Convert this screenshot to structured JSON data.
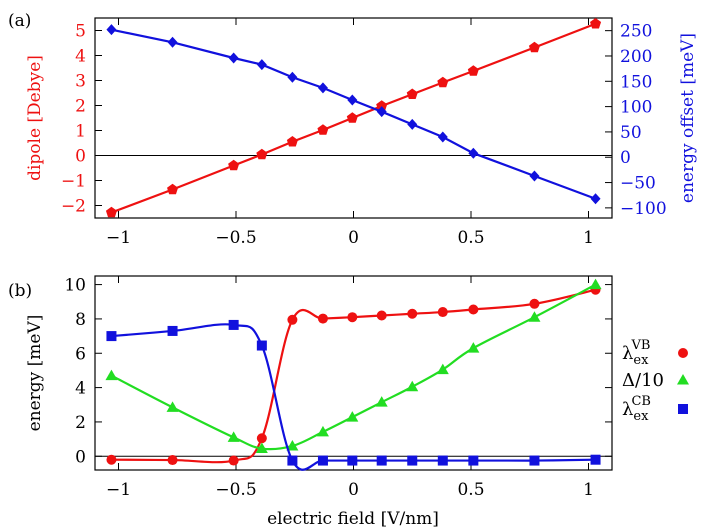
{
  "colors": {
    "red": "#ee1111",
    "blue": "#1111dd",
    "green": "#22dd22",
    "black": "#000000"
  },
  "x_label": "electric field [V/nm]",
  "chart_data": [
    {
      "panel_label": "(a)",
      "type": "line",
      "xlim": [
        -1.1,
        1.1
      ],
      "x_ticks": [
        -1,
        -0.5,
        0,
        0.5,
        1
      ],
      "x_tick_labels": [
        "−1",
        "−0.5",
        "0",
        "0.5",
        "1"
      ],
      "left_axis": {
        "label": "dipole [Debye]",
        "ylim": [
          -2.5,
          5.5
        ],
        "ticks": [
          -2,
          -1,
          0,
          1,
          2,
          3,
          4,
          5
        ],
        "tick_labels": [
          "−2",
          "−1",
          "0",
          "1",
          "2",
          "3",
          "4",
          "5"
        ]
      },
      "right_axis": {
        "label": "energy offset [meV]",
        "ylim": [
          -120,
          275
        ],
        "ticks": [
          -100,
          -50,
          0,
          50,
          100,
          150,
          200,
          250
        ],
        "tick_labels": [
          "−100",
          "−50",
          "0",
          "50",
          "100",
          "150",
          "200",
          "250"
        ]
      },
      "zero_line": 0,
      "series": [
        {
          "axis": "left",
          "color": "#ee1111",
          "marker": "pentagon",
          "x": [
            -1.03,
            -0.77,
            -0.51,
            -0.39,
            -0.26,
            -0.13,
            -0.005,
            0.12,
            0.25,
            0.38,
            0.51,
            0.77,
            1.03
          ],
          "y": [
            -2.28,
            -1.36,
            -0.4,
            0.04,
            0.55,
            1.02,
            1.5,
            1.98,
            2.45,
            2.92,
            3.38,
            4.32,
            5.27
          ]
        },
        {
          "axis": "right",
          "color": "#1111dd",
          "marker": "diamond",
          "x": [
            -1.03,
            -0.77,
            -0.51,
            -0.39,
            -0.26,
            -0.13,
            -0.005,
            0.12,
            0.25,
            0.38,
            0.51,
            0.77,
            1.03
          ],
          "y": [
            252,
            227,
            196,
            183,
            158,
            137,
            113,
            90,
            65,
            40,
            8,
            -37,
            -82
          ]
        }
      ]
    },
    {
      "panel_label": "(b)",
      "type": "line",
      "xlim": [
        -1.1,
        1.1
      ],
      "x_ticks": [
        -1,
        -0.5,
        0,
        0.5,
        1
      ],
      "x_tick_labels": [
        "−1",
        "−0.5",
        "0",
        "0.5",
        "1"
      ],
      "y_axis": {
        "label": "energy [meV]",
        "ylim": [
          -0.8,
          10.5
        ],
        "ticks": [
          0,
          2,
          4,
          6,
          8,
          10
        ],
        "tick_labels": [
          "0",
          "2",
          "4",
          "6",
          "8",
          "10"
        ]
      },
      "zero_line": 0,
      "legend_position": "right",
      "series": [
        {
          "name_main": "λ",
          "name_sub": "ex",
          "name_sup": "VB",
          "color": "#ee1111",
          "marker": "circle",
          "x": [
            -1.03,
            -0.77,
            -0.51,
            -0.39,
            -0.26,
            -0.13,
            -0.005,
            0.12,
            0.25,
            0.38,
            0.51,
            0.77,
            1.03
          ],
          "y": [
            -0.2,
            -0.22,
            -0.25,
            1.05,
            7.95,
            8.02,
            8.1,
            8.2,
            8.3,
            8.4,
            8.55,
            8.88,
            9.7
          ]
        },
        {
          "name_main": "Δ/10",
          "color": "#22dd22",
          "marker": "triangle",
          "x": [
            -1.03,
            -0.77,
            -0.51,
            -0.39,
            -0.26,
            -0.13,
            -0.005,
            0.12,
            0.25,
            0.38,
            0.51,
            0.77,
            1.03
          ],
          "y": [
            4.7,
            2.85,
            1.1,
            0.45,
            0.6,
            1.42,
            2.28,
            3.15,
            4.05,
            5.05,
            6.3,
            8.1,
            10.0
          ]
        },
        {
          "name_main": "λ",
          "name_sub": "ex",
          "name_sup": "CB",
          "color": "#1111dd",
          "marker": "square",
          "x": [
            -1.03,
            -0.77,
            -0.51,
            -0.39,
            -0.26,
            -0.13,
            -0.005,
            0.12,
            0.25,
            0.38,
            0.51,
            0.77,
            1.03
          ],
          "y": [
            7.0,
            7.3,
            7.65,
            6.45,
            -0.25,
            -0.25,
            -0.25,
            -0.25,
            -0.25,
            -0.25,
            -0.25,
            -0.25,
            -0.2
          ]
        }
      ]
    }
  ]
}
